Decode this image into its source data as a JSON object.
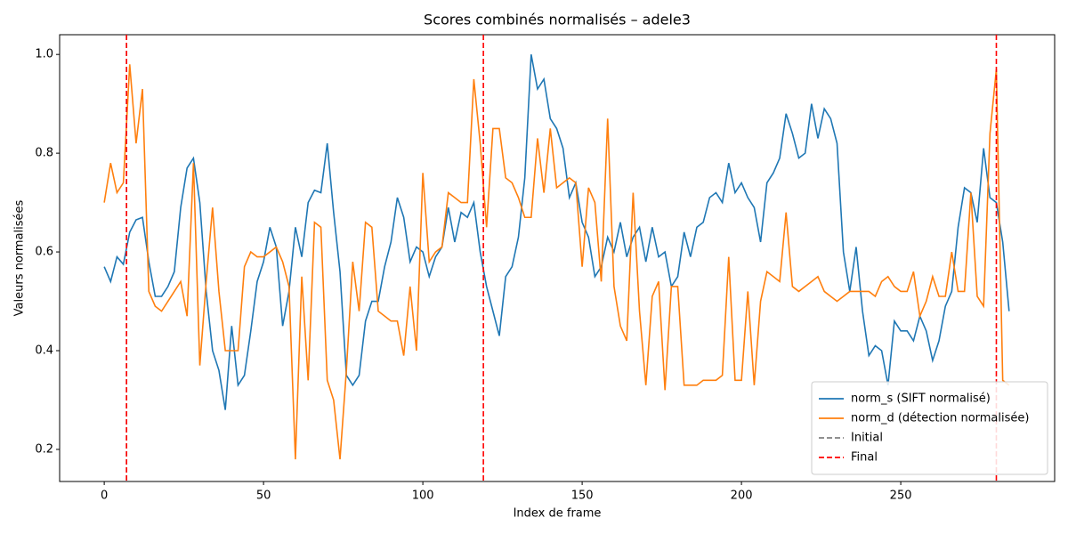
{
  "chart_data": {
    "type": "line",
    "title": "Scores combinés normalisés – adele3",
    "x_label": "Index de frame",
    "y_label": "Valeurs normalisées",
    "x": [
      0,
      2,
      4,
      6,
      8,
      10,
      12,
      14,
      16,
      18,
      20,
      22,
      24,
      26,
      28,
      30,
      32,
      34,
      36,
      38,
      40,
      42,
      44,
      46,
      48,
      50,
      52,
      54,
      56,
      58,
      60,
      62,
      64,
      66,
      68,
      70,
      72,
      74,
      76,
      78,
      80,
      82,
      84,
      86,
      88,
      90,
      92,
      94,
      96,
      98,
      100,
      102,
      104,
      106,
      108,
      110,
      112,
      114,
      116,
      118,
      120,
      122,
      124,
      126,
      128,
      130,
      132,
      134,
      136,
      138,
      140,
      142,
      144,
      146,
      148,
      150,
      152,
      154,
      156,
      158,
      160,
      162,
      164,
      166,
      168,
      170,
      172,
      174,
      176,
      178,
      180,
      182,
      184,
      186,
      188,
      190,
      192,
      194,
      196,
      198,
      200,
      202,
      204,
      206,
      208,
      210,
      212,
      214,
      216,
      218,
      220,
      222,
      224,
      226,
      228,
      230,
      232,
      234,
      236,
      238,
      240,
      242,
      244,
      246,
      248,
      250,
      252,
      254,
      256,
      258,
      260,
      262,
      264,
      266,
      268,
      270,
      272,
      274,
      276,
      278,
      280,
      282,
      284
    ],
    "series": [
      {
        "name": "norm_s (SIFT normalisé)",
        "color": "#1f77b4",
        "values": [
          0.57,
          0.54,
          0.59,
          0.575,
          0.64,
          0.665,
          0.67,
          0.58,
          0.51,
          0.51,
          0.53,
          0.56,
          0.69,
          0.77,
          0.79,
          0.7,
          0.52,
          0.4,
          0.36,
          0.28,
          0.45,
          0.33,
          0.35,
          0.44,
          0.54,
          0.58,
          0.65,
          0.61,
          0.45,
          0.52,
          0.65,
          0.59,
          0.7,
          0.725,
          0.72,
          0.82,
          0.68,
          0.56,
          0.35,
          0.33,
          0.35,
          0.46,
          0.5,
          0.5,
          0.57,
          0.62,
          0.71,
          0.67,
          0.58,
          0.61,
          0.6,
          0.55,
          0.59,
          0.61,
          0.69,
          0.62,
          0.68,
          0.67,
          0.7,
          0.6,
          0.53,
          0.48,
          0.43,
          0.55,
          0.57,
          0.63,
          0.75,
          1.0,
          0.93,
          0.95,
          0.87,
          0.85,
          0.81,
          0.71,
          0.74,
          0.66,
          0.63,
          0.55,
          0.57,
          0.63,
          0.6,
          0.66,
          0.59,
          0.63,
          0.65,
          0.58,
          0.65,
          0.59,
          0.6,
          0.53,
          0.55,
          0.64,
          0.59,
          0.65,
          0.66,
          0.71,
          0.72,
          0.7,
          0.78,
          0.72,
          0.74,
          0.71,
          0.69,
          0.62,
          0.74,
          0.76,
          0.79,
          0.88,
          0.84,
          0.79,
          0.8,
          0.9,
          0.83,
          0.89,
          0.87,
          0.82,
          0.6,
          0.52,
          0.61,
          0.48,
          0.39,
          0.41,
          0.4,
          0.33,
          0.46,
          0.44,
          0.44,
          0.42,
          0.47,
          0.44,
          0.38,
          0.42,
          0.49,
          0.52,
          0.65,
          0.73,
          0.72,
          0.66,
          0.81,
          0.71,
          0.7,
          0.62,
          0.48
        ]
      },
      {
        "name": "norm_d (détection normalisée)",
        "color": "#ff7f0e",
        "values": [
          0.7,
          0.78,
          0.72,
          0.74,
          0.98,
          0.82,
          0.93,
          0.52,
          0.49,
          0.48,
          0.5,
          0.52,
          0.54,
          0.47,
          0.78,
          0.37,
          0.54,
          0.69,
          0.52,
          0.4,
          0.4,
          0.4,
          0.57,
          0.6,
          0.59,
          0.59,
          0.6,
          0.61,
          0.58,
          0.53,
          0.18,
          0.55,
          0.34,
          0.66,
          0.65,
          0.34,
          0.3,
          0.18,
          0.36,
          0.58,
          0.48,
          0.66,
          0.65,
          0.48,
          0.47,
          0.46,
          0.46,
          0.39,
          0.53,
          0.4,
          0.76,
          0.58,
          0.6,
          0.61,
          0.72,
          0.71,
          0.7,
          0.7,
          0.95,
          0.82,
          0.65,
          0.85,
          0.85,
          0.75,
          0.74,
          0.71,
          0.67,
          0.67,
          0.83,
          0.72,
          0.85,
          0.73,
          0.74,
          0.75,
          0.74,
          0.57,
          0.73,
          0.7,
          0.54,
          0.87,
          0.53,
          0.45,
          0.42,
          0.72,
          0.48,
          0.33,
          0.51,
          0.54,
          0.32,
          0.53,
          0.53,
          0.33,
          0.33,
          0.33,
          0.34,
          0.34,
          0.34,
          0.35,
          0.59,
          0.34,
          0.34,
          0.52,
          0.33,
          0.5,
          0.56,
          0.55,
          0.54,
          0.68,
          0.53,
          0.52,
          0.53,
          0.54,
          0.55,
          0.52,
          0.51,
          0.5,
          0.51,
          0.52,
          0.52,
          0.52,
          0.52,
          0.51,
          0.54,
          0.55,
          0.53,
          0.52,
          0.52,
          0.56,
          0.47,
          0.5,
          0.55,
          0.51,
          0.51,
          0.6,
          0.52,
          0.52,
          0.72,
          0.51,
          0.49,
          0.84,
          0.97,
          0.34,
          0.33
        ]
      }
    ],
    "markers": [
      {
        "name": "Initial",
        "color": "#808080",
        "x": [
          7
        ]
      },
      {
        "name": "Final",
        "color": "#ff0000",
        "x": [
          7,
          119,
          280
        ]
      }
    ],
    "xlim": [
      -14,
      298.3
    ],
    "ylim": [
      0.135,
      1.04
    ],
    "xticks": [
      0,
      50,
      100,
      150,
      200,
      250
    ],
    "yticks": [
      0.2,
      0.4,
      0.6,
      0.8,
      {
        "value": 1,
        "label": "1.0"
      }
    ],
    "legend": "lower right"
  }
}
